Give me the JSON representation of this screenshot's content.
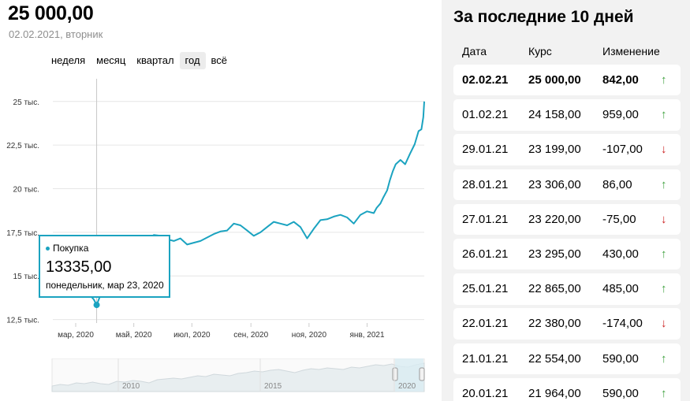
{
  "header": {
    "price": "25 000,00",
    "date": "02.02.2021, вторник"
  },
  "periods": [
    {
      "label": "неделя",
      "active": false
    },
    {
      "label": "месяц",
      "active": false
    },
    {
      "label": "квартал",
      "active": false
    },
    {
      "label": "год",
      "active": true
    },
    {
      "label": "всё",
      "active": false
    }
  ],
  "tooltip": {
    "series": "Покупка",
    "value": "13335,00",
    "date": "понедельник, мар 23, 2020"
  },
  "chart_data": {
    "type": "line",
    "series": [
      {
        "name": "Покупка",
        "color": "#1ba3c0",
        "points": [
          [
            "2020-03-02",
            14350
          ],
          [
            "2020-03-09",
            14200
          ],
          [
            "2020-03-16",
            13900
          ],
          [
            "2020-03-20",
            13650
          ],
          [
            "2020-03-23",
            13335
          ],
          [
            "2020-03-27",
            13900
          ],
          [
            "2020-04-02",
            14800
          ],
          [
            "2020-04-09",
            15400
          ],
          [
            "2020-04-16",
            16000
          ],
          [
            "2020-04-23",
            16600
          ],
          [
            "2020-05-01",
            17000
          ],
          [
            "2020-05-08",
            17200
          ],
          [
            "2020-05-15",
            17000
          ],
          [
            "2020-05-22",
            17350
          ],
          [
            "2020-05-29",
            17300
          ],
          [
            "2020-06-05",
            17100
          ],
          [
            "2020-06-12",
            17000
          ],
          [
            "2020-06-19",
            17150
          ],
          [
            "2020-06-26",
            16800
          ],
          [
            "2020-07-03",
            16900
          ],
          [
            "2020-07-10",
            17000
          ],
          [
            "2020-07-17",
            17200
          ],
          [
            "2020-07-24",
            17400
          ],
          [
            "2020-07-31",
            17550
          ],
          [
            "2020-08-07",
            17600
          ],
          [
            "2020-08-14",
            18000
          ],
          [
            "2020-08-21",
            17900
          ],
          [
            "2020-08-28",
            17600
          ],
          [
            "2020-09-04",
            17300
          ],
          [
            "2020-09-11",
            17500
          ],
          [
            "2020-09-18",
            17800
          ],
          [
            "2020-09-25",
            18100
          ],
          [
            "2020-10-02",
            18000
          ],
          [
            "2020-10-09",
            17900
          ],
          [
            "2020-10-16",
            18100
          ],
          [
            "2020-10-23",
            17800
          ],
          [
            "2020-10-30",
            17150
          ],
          [
            "2020-11-06",
            17700
          ],
          [
            "2020-11-13",
            18200
          ],
          [
            "2020-11-20",
            18250
          ],
          [
            "2020-11-27",
            18400
          ],
          [
            "2020-12-04",
            18500
          ],
          [
            "2020-12-11",
            18350
          ],
          [
            "2020-12-18",
            18000
          ],
          [
            "2020-12-25",
            18500
          ],
          [
            "2021-01-01",
            18700
          ],
          [
            "2021-01-08",
            18600
          ],
          [
            "2021-01-11",
            18900
          ],
          [
            "2021-01-15",
            19150
          ],
          [
            "2021-01-18",
            19500
          ],
          [
            "2021-01-22",
            19900
          ],
          [
            "2021-01-25",
            20500
          ],
          [
            "2021-01-28",
            21000
          ],
          [
            "2021-01-31",
            21400
          ],
          [
            "2021-02-05",
            21650
          ],
          [
            "2021-02-10",
            21400
          ],
          [
            "2021-02-15",
            22000
          ],
          [
            "2021-02-20",
            22550
          ],
          [
            "2021-02-24",
            23300
          ],
          [
            "2021-02-27",
            23400
          ],
          [
            "2021-03-01",
            24100
          ],
          [
            "2021-03-02",
            25000
          ]
        ]
      }
    ],
    "yticks": [
      {
        "value": 12500,
        "label": "12,5 тыс."
      },
      {
        "value": 15000,
        "label": "15 тыс."
      },
      {
        "value": 17500,
        "label": "17,5 тыс."
      },
      {
        "value": 20000,
        "label": "20 тыс."
      },
      {
        "value": 22500,
        "label": "22,5 тыс."
      },
      {
        "value": 25000,
        "label": "25 тыс."
      }
    ],
    "xticks": [
      {
        "date": "2020-03-01",
        "label": "мар, 2020"
      },
      {
        "date": "2020-05-01",
        "label": "май, 2020"
      },
      {
        "date": "2020-07-01",
        "label": "июл, 2020"
      },
      {
        "date": "2020-09-01",
        "label": "сен, 2020"
      },
      {
        "date": "2020-11-01",
        "label": "ноя, 2020"
      },
      {
        "date": "2021-01-01",
        "label": "янв, 2021"
      }
    ],
    "xlim": [
      "2020-02-06",
      "2021-03-02"
    ],
    "ylim": [
      12300,
      26300
    ],
    "crosshair": "2020-03-23",
    "grid": true
  },
  "navigator": {
    "labels": [
      "2010",
      "2015",
      "2020"
    ]
  },
  "table": {
    "title": "За последние 10 дней",
    "headers": [
      "Дата",
      "Курс",
      "Изменение"
    ],
    "rows": [
      {
        "date": "02.02.21",
        "rate": "25 000,00",
        "change": "842,00",
        "dir": "up",
        "bold": true
      },
      {
        "date": "01.02.21",
        "rate": "24 158,00",
        "change": "959,00",
        "dir": "up"
      },
      {
        "date": "29.01.21",
        "rate": "23 199,00",
        "change": "-107,00",
        "dir": "down"
      },
      {
        "date": "28.01.21",
        "rate": "23 306,00",
        "change": "86,00",
        "dir": "up"
      },
      {
        "date": "27.01.21",
        "rate": "23 220,00",
        "change": "-75,00",
        "dir": "down"
      },
      {
        "date": "26.01.21",
        "rate": "23 295,00",
        "change": "430,00",
        "dir": "up"
      },
      {
        "date": "25.01.21",
        "rate": "22 865,00",
        "change": "485,00",
        "dir": "up"
      },
      {
        "date": "22.01.21",
        "rate": "22 380,00",
        "change": "-174,00",
        "dir": "down"
      },
      {
        "date": "21.01.21",
        "rate": "22 554,00",
        "change": "590,00",
        "dir": "up"
      },
      {
        "date": "20.01.21",
        "rate": "21 964,00",
        "change": "590,00",
        "dir": "up"
      }
    ],
    "arrows": {
      "up": "↑",
      "down": "↓"
    }
  }
}
